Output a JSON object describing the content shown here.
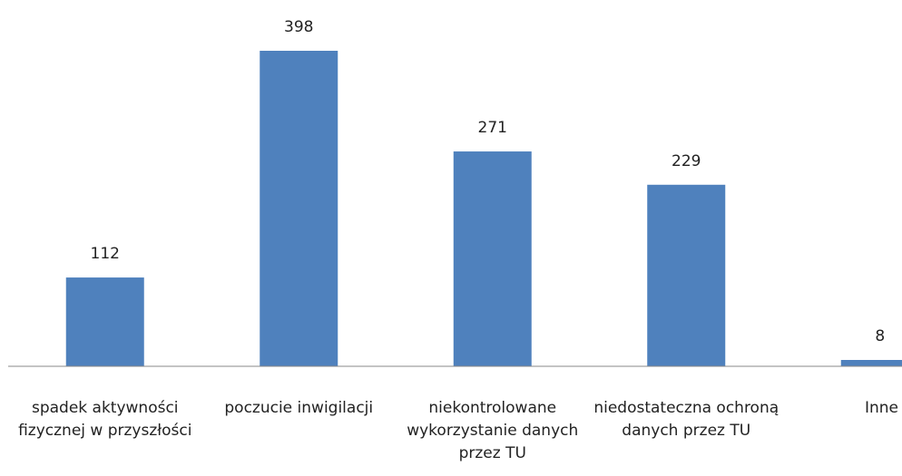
{
  "chart_data": {
    "type": "bar",
    "categories": [
      "spadek aktywności fizycznej w przyszłości",
      "poczucie inwigilacji",
      "niekontrolowane wykorzystanie danych przez TU",
      "niedostateczna ochroną danych przez TU",
      "Inne"
    ],
    "values": [
      112,
      398,
      271,
      229,
      8
    ],
    "color": "#4f81bd"
  }
}
